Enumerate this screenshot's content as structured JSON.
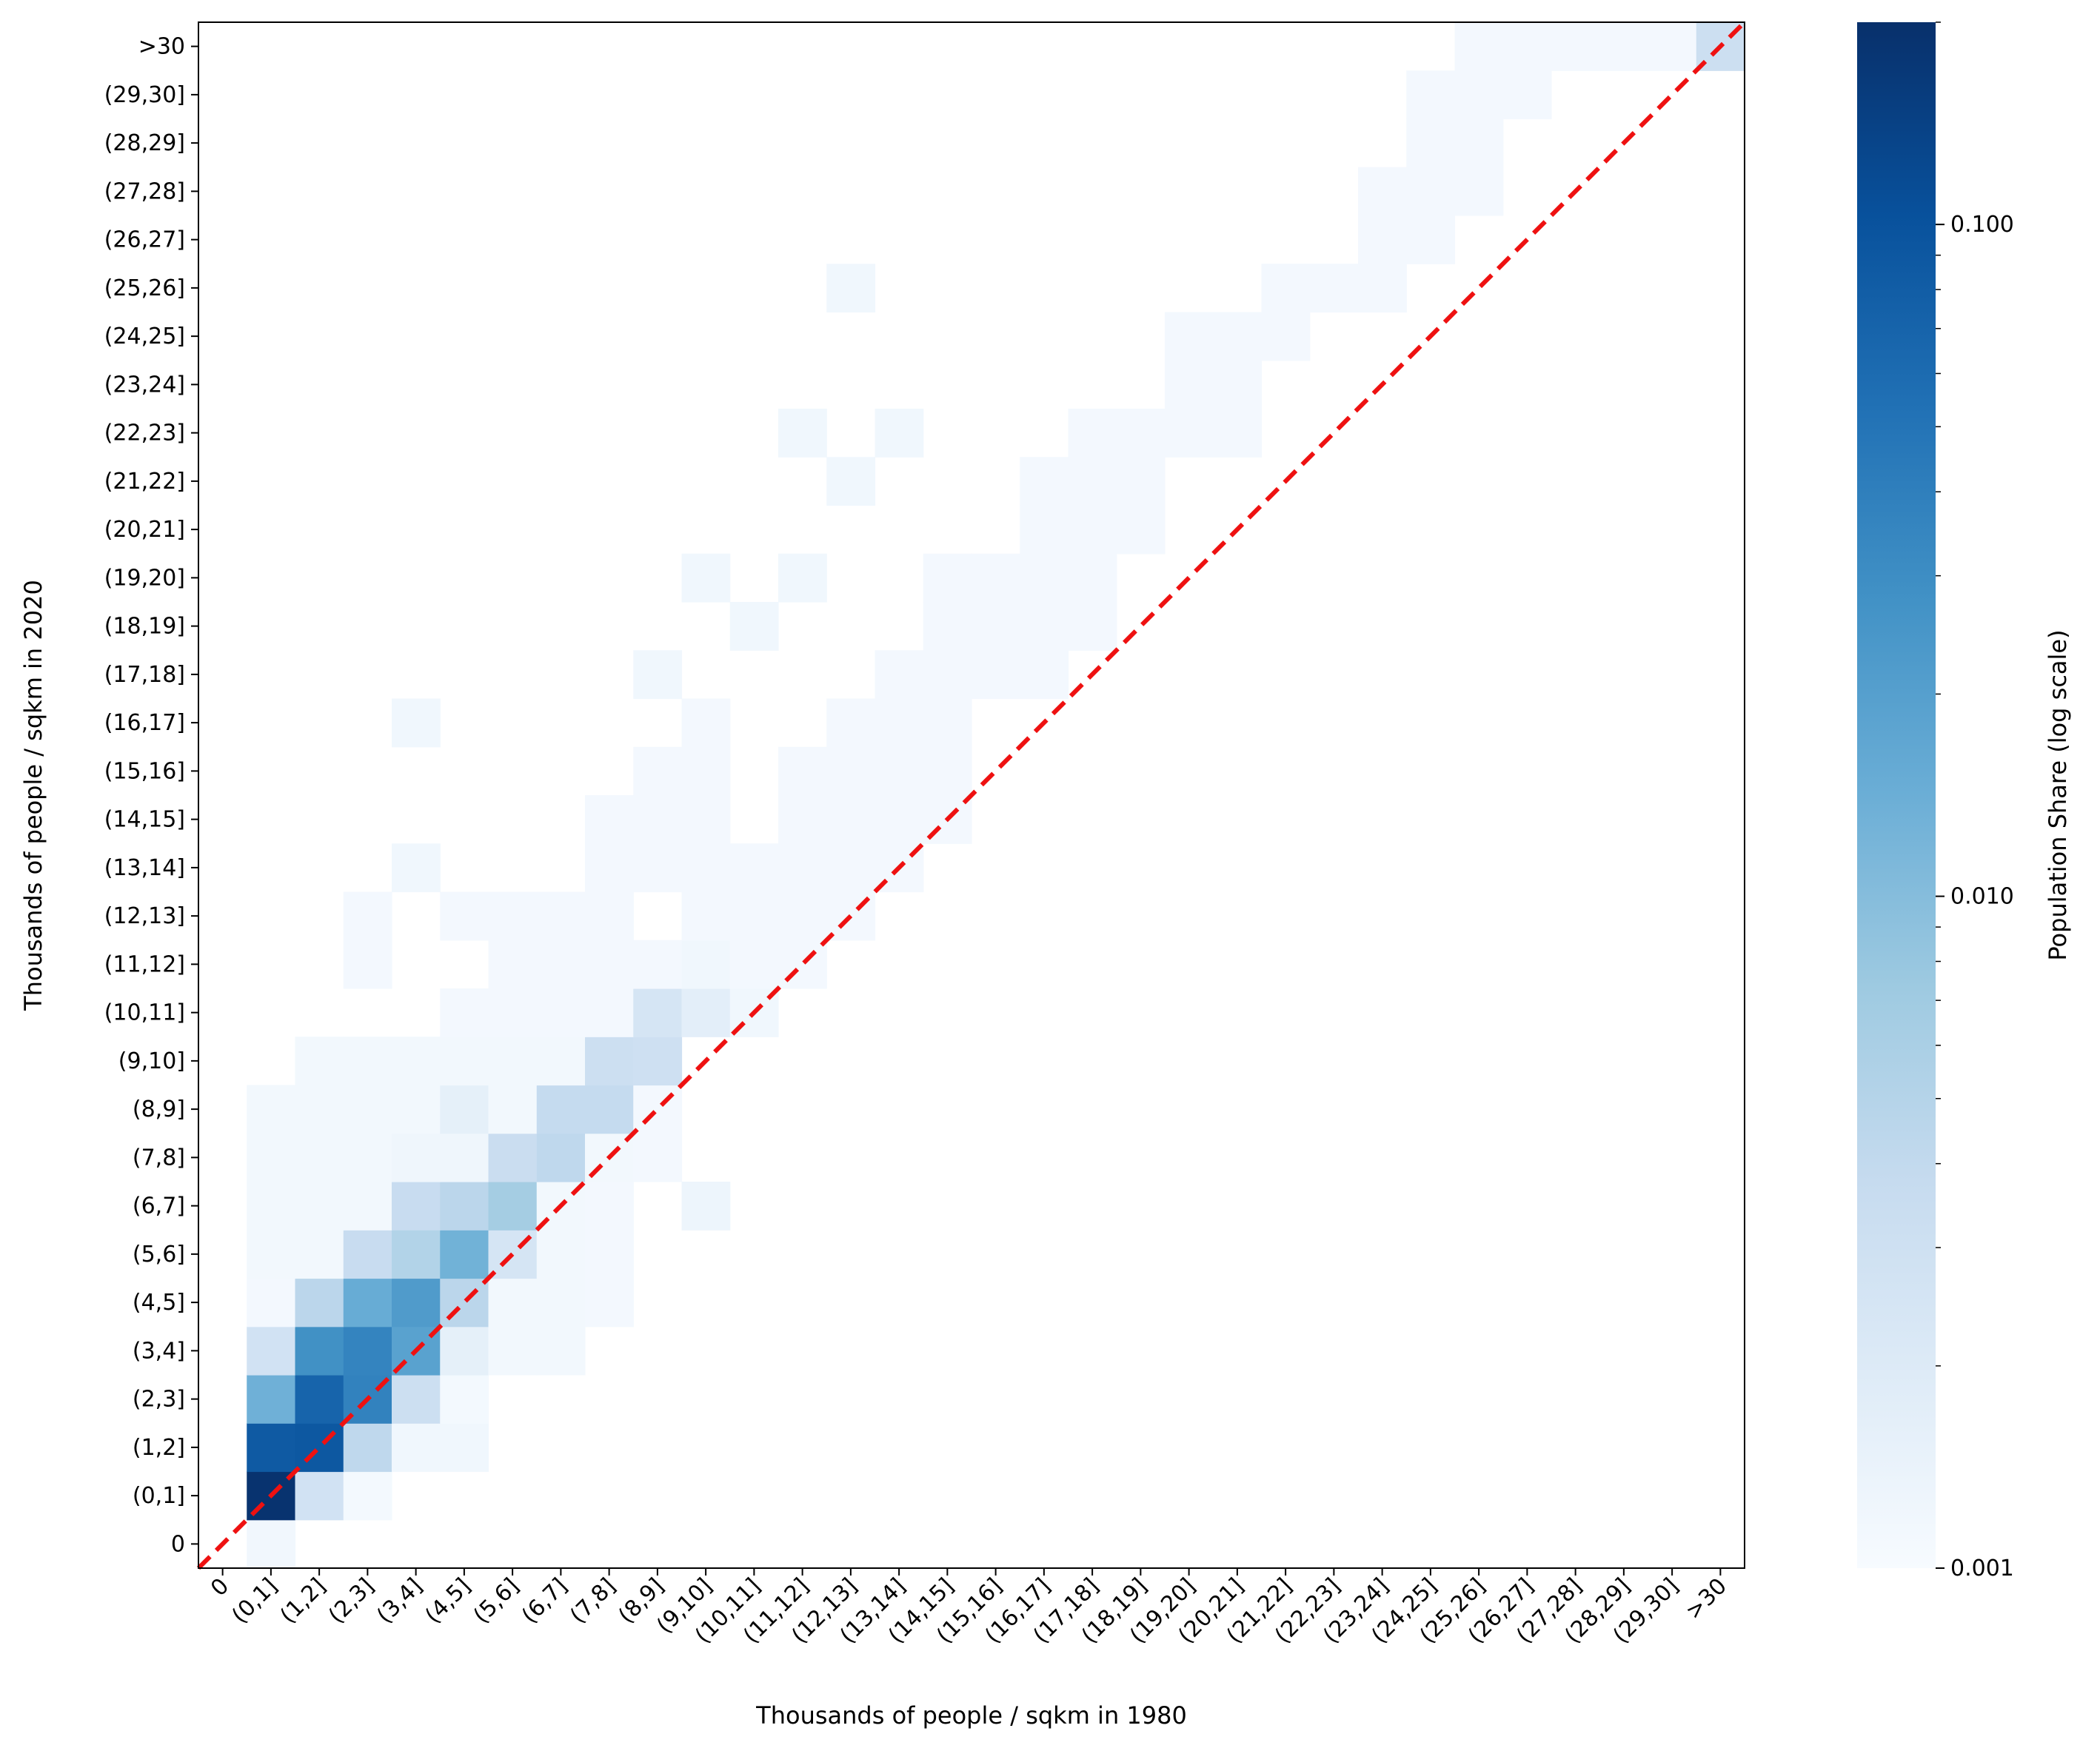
{
  "chart_data": {
    "type": "heatmap",
    "title": "",
    "xlabel": "Thousands of people / sqkm in 1980",
    "ylabel": "Thousands of people / sqkm in 2020",
    "categories": [
      "0",
      "(0,1]",
      "(1,2]",
      "(2,3]",
      "(3,4]",
      "(4,5]",
      "(5,6]",
      "(6,7]",
      "(7,8]",
      "(8,9]",
      "(9,10]",
      "(10,11]",
      "(11,12]",
      "(12,13]",
      "(13,14]",
      "(14,15]",
      "(15,16]",
      "(16,17]",
      "(17,18]",
      "(18,19]",
      "(19,20]",
      "(20,21]",
      "(21,22]",
      "(22,23]",
      "(23,24]",
      "(24,25]",
      "(25,26]",
      "(26,27]",
      "(27,28]",
      "(28,29]",
      "(29,30]",
      ">30"
    ],
    "colorbar": {
      "label": "Population Share (log scale)",
      "scale": "log",
      "range": [
        0.001,
        0.2
      ],
      "tick_values": [
        0.001,
        0.01,
        0.1
      ],
      "tick_labels": [
        "0.001",
        "0.010",
        "0.100"
      ]
    },
    "reference_line": {
      "style": "dashed",
      "color": "#ee1111",
      "description": "y = x diagonal"
    },
    "colormap": "Blues",
    "cells": [
      [
        0,
        1,
        0.00118
      ],
      [
        1,
        1,
        0.19
      ],
      [
        1,
        2,
        0.0028
      ],
      [
        1,
        3,
        0.0011
      ],
      [
        2,
        1,
        0.085
      ],
      [
        2,
        2,
        0.09
      ],
      [
        2,
        3,
        0.0042
      ],
      [
        2,
        4,
        0.0012
      ],
      [
        2,
        5,
        0.0012
      ],
      [
        3,
        1,
        0.0135
      ],
      [
        3,
        2,
        0.07
      ],
      [
        3,
        3,
        0.038
      ],
      [
        3,
        4,
        0.0032
      ],
      [
        3,
        5,
        0.0011
      ],
      [
        4,
        1,
        0.0028
      ],
      [
        4,
        2,
        0.028
      ],
      [
        4,
        3,
        0.036
      ],
      [
        4,
        4,
        0.019
      ],
      [
        4,
        5,
        0.0016
      ],
      [
        4,
        6,
        0.00115
      ],
      [
        4,
        7,
        0.00115
      ],
      [
        5,
        1,
        0.00112
      ],
      [
        5,
        2,
        0.0045
      ],
      [
        5,
        3,
        0.015
      ],
      [
        5,
        4,
        0.022
      ],
      [
        5,
        5,
        0.0045
      ],
      [
        5,
        6,
        0.00115
      ],
      [
        5,
        7,
        0.00115
      ],
      [
        5,
        8,
        0.00112
      ],
      [
        6,
        1,
        0.00115
      ],
      [
        6,
        2,
        0.00115
      ],
      [
        6,
        3,
        0.0036
      ],
      [
        6,
        4,
        0.0052
      ],
      [
        6,
        5,
        0.013
      ],
      [
        6,
        6,
        0.0025
      ],
      [
        6,
        7,
        0.00115
      ],
      [
        6,
        8,
        0.00112
      ],
      [
        7,
        1,
        0.00115
      ],
      [
        7,
        2,
        0.00115
      ],
      [
        7,
        3,
        0.00115
      ],
      [
        7,
        4,
        0.0036
      ],
      [
        7,
        5,
        0.0045
      ],
      [
        7,
        6,
        0.0065
      ],
      [
        7,
        7,
        0.00115
      ],
      [
        7,
        8,
        0.00112
      ],
      [
        7,
        10,
        0.0013
      ],
      [
        8,
        1,
        0.00115
      ],
      [
        8,
        2,
        0.00115
      ],
      [
        8,
        3,
        0.00115
      ],
      [
        8,
        4,
        0.00125
      ],
      [
        8,
        5,
        0.00125
      ],
      [
        8,
        6,
        0.0034
      ],
      [
        8,
        7,
        0.0042
      ],
      [
        8,
        8,
        0.00115
      ],
      [
        8,
        9,
        0.00112
      ],
      [
        9,
        1,
        0.00115
      ],
      [
        9,
        2,
        0.00115
      ],
      [
        9,
        3,
        0.00115
      ],
      [
        9,
        4,
        0.00115
      ],
      [
        9,
        5,
        0.0016
      ],
      [
        9,
        6,
        0.00115
      ],
      [
        9,
        7,
        0.0038
      ],
      [
        9,
        8,
        0.0038
      ],
      [
        9,
        9,
        0.00112
      ],
      [
        10,
        2,
        0.00115
      ],
      [
        10,
        3,
        0.00115
      ],
      [
        10,
        4,
        0.00115
      ],
      [
        10,
        5,
        0.00115
      ],
      [
        10,
        6,
        0.00115
      ],
      [
        10,
        7,
        0.00115
      ],
      [
        10,
        8,
        0.0032
      ],
      [
        10,
        9,
        0.003
      ],
      [
        11,
        5,
        0.00112
      ],
      [
        11,
        6,
        0.00112
      ],
      [
        11,
        7,
        0.00112
      ],
      [
        11,
        8,
        0.00112
      ],
      [
        11,
        9,
        0.0025
      ],
      [
        11,
        10,
        0.0017
      ],
      [
        11,
        11,
        0.0012
      ],
      [
        12,
        3,
        0.00112
      ],
      [
        12,
        6,
        0.00112
      ],
      [
        12,
        7,
        0.00112
      ],
      [
        12,
        8,
        0.00112
      ],
      [
        12,
        9,
        0.00112
      ],
      [
        12,
        10,
        0.0012
      ],
      [
        12,
        11,
        0.00112
      ],
      [
        12,
        12,
        0.00112
      ],
      [
        13,
        3,
        0.00112
      ],
      [
        13,
        5,
        0.00112
      ],
      [
        13,
        6,
        0.00112
      ],
      [
        13,
        7,
        0.00112
      ],
      [
        13,
        8,
        0.00112
      ],
      [
        13,
        10,
        0.00112
      ],
      [
        13,
        11,
        0.00112
      ],
      [
        13,
        12,
        0.00112
      ],
      [
        13,
        13,
        0.00112
      ],
      [
        14,
        4,
        0.0012
      ],
      [
        14,
        8,
        0.00112
      ],
      [
        14,
        9,
        0.00112
      ],
      [
        14,
        10,
        0.00112
      ],
      [
        14,
        11,
        0.00112
      ],
      [
        14,
        12,
        0.00112
      ],
      [
        14,
        13,
        0.00112
      ],
      [
        14,
        14,
        0.00112
      ],
      [
        15,
        8,
        0.00112
      ],
      [
        15,
        9,
        0.00112
      ],
      [
        15,
        10,
        0.00112
      ],
      [
        15,
        12,
        0.00112
      ],
      [
        15,
        13,
        0.00112
      ],
      [
        15,
        14,
        0.00112
      ],
      [
        15,
        15,
        0.00112
      ],
      [
        16,
        9,
        0.00112
      ],
      [
        16,
        10,
        0.00112
      ],
      [
        16,
        12,
        0.00112
      ],
      [
        16,
        13,
        0.00112
      ],
      [
        16,
        14,
        0.00112
      ],
      [
        16,
        15,
        0.00112
      ],
      [
        17,
        4,
        0.0012
      ],
      [
        17,
        10,
        0.00112
      ],
      [
        17,
        13,
        0.00112
      ],
      [
        17,
        14,
        0.00112
      ],
      [
        17,
        15,
        0.00112
      ],
      [
        18,
        9,
        0.0012
      ],
      [
        18,
        14,
        0.00112
      ],
      [
        18,
        15,
        0.00112
      ],
      [
        18,
        16,
        0.00112
      ],
      [
        18,
        17,
        0.00112
      ],
      [
        19,
        11,
        0.0012
      ],
      [
        19,
        15,
        0.00112
      ],
      [
        19,
        16,
        0.00112
      ],
      [
        19,
        17,
        0.00112
      ],
      [
        19,
        18,
        0.00112
      ],
      [
        20,
        10,
        0.0012
      ],
      [
        20,
        12,
        0.0012
      ],
      [
        20,
        15,
        0.00112
      ],
      [
        20,
        16,
        0.00112
      ],
      [
        20,
        17,
        0.00112
      ],
      [
        20,
        18,
        0.00112
      ],
      [
        21,
        17,
        0.00112
      ],
      [
        21,
        18,
        0.00112
      ],
      [
        21,
        19,
        0.00112
      ],
      [
        22,
        13,
        0.0012
      ],
      [
        22,
        17,
        0.00112
      ],
      [
        22,
        18,
        0.00112
      ],
      [
        22,
        19,
        0.00112
      ],
      [
        23,
        12,
        0.0012
      ],
      [
        23,
        14,
        0.0012
      ],
      [
        23,
        18,
        0.00112
      ],
      [
        23,
        19,
        0.00112
      ],
      [
        23,
        20,
        0.00112
      ],
      [
        23,
        21,
        0.00112
      ],
      [
        24,
        20,
        0.00112
      ],
      [
        24,
        21,
        0.00112
      ],
      [
        25,
        20,
        0.00112
      ],
      [
        25,
        21,
        0.00112
      ],
      [
        25,
        22,
        0.00112
      ],
      [
        26,
        13,
        0.0012
      ],
      [
        26,
        22,
        0.00112
      ],
      [
        26,
        23,
        0.00112
      ],
      [
        26,
        24,
        0.00112
      ],
      [
        27,
        24,
        0.00112
      ],
      [
        27,
        25,
        0.00112
      ],
      [
        28,
        24,
        0.00112
      ],
      [
        28,
        25,
        0.00112
      ],
      [
        28,
        26,
        0.00112
      ],
      [
        29,
        25,
        0.00112
      ],
      [
        29,
        26,
        0.00112
      ],
      [
        30,
        25,
        0.00112
      ],
      [
        30,
        26,
        0.00112
      ],
      [
        30,
        27,
        0.00112
      ],
      [
        31,
        26,
        0.00112
      ],
      [
        31,
        27,
        0.00112
      ],
      [
        31,
        28,
        0.00112
      ],
      [
        31,
        29,
        0.00112
      ],
      [
        31,
        30,
        0.00112
      ],
      [
        31,
        31,
        0.0032
      ]
    ]
  }
}
